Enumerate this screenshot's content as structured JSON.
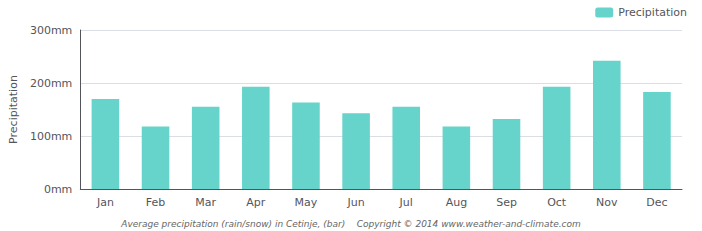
{
  "chart_data": {
    "type": "bar",
    "categories": [
      "Jan",
      "Feb",
      "Mar",
      "Apr",
      "May",
      "Jun",
      "Jul",
      "Aug",
      "Sep",
      "Oct",
      "Nov",
      "Dec"
    ],
    "series": [
      {
        "name": "Precipitation",
        "color": "#66D4CB",
        "values": [
          170,
          118,
          155,
          193,
          163,
          143,
          155,
          118,
          132,
          193,
          242,
          183
        ]
      }
    ],
    "ylabel": "Precipitation",
    "ylim": [
      0,
      300
    ],
    "yticks": [
      {
        "value": 0,
        "label": "0mm"
      },
      {
        "value": 100,
        "label": "100mm"
      },
      {
        "value": 200,
        "label": "200mm"
      },
      {
        "value": 300,
        "label": "300mm"
      }
    ],
    "grid": true,
    "legend": "upper right",
    "annotations": [
      "Average precipitation (rain/snow) in Cetinje, (bar)    Copyright © 2014 www.weather-and-climate.com"
    ]
  }
}
